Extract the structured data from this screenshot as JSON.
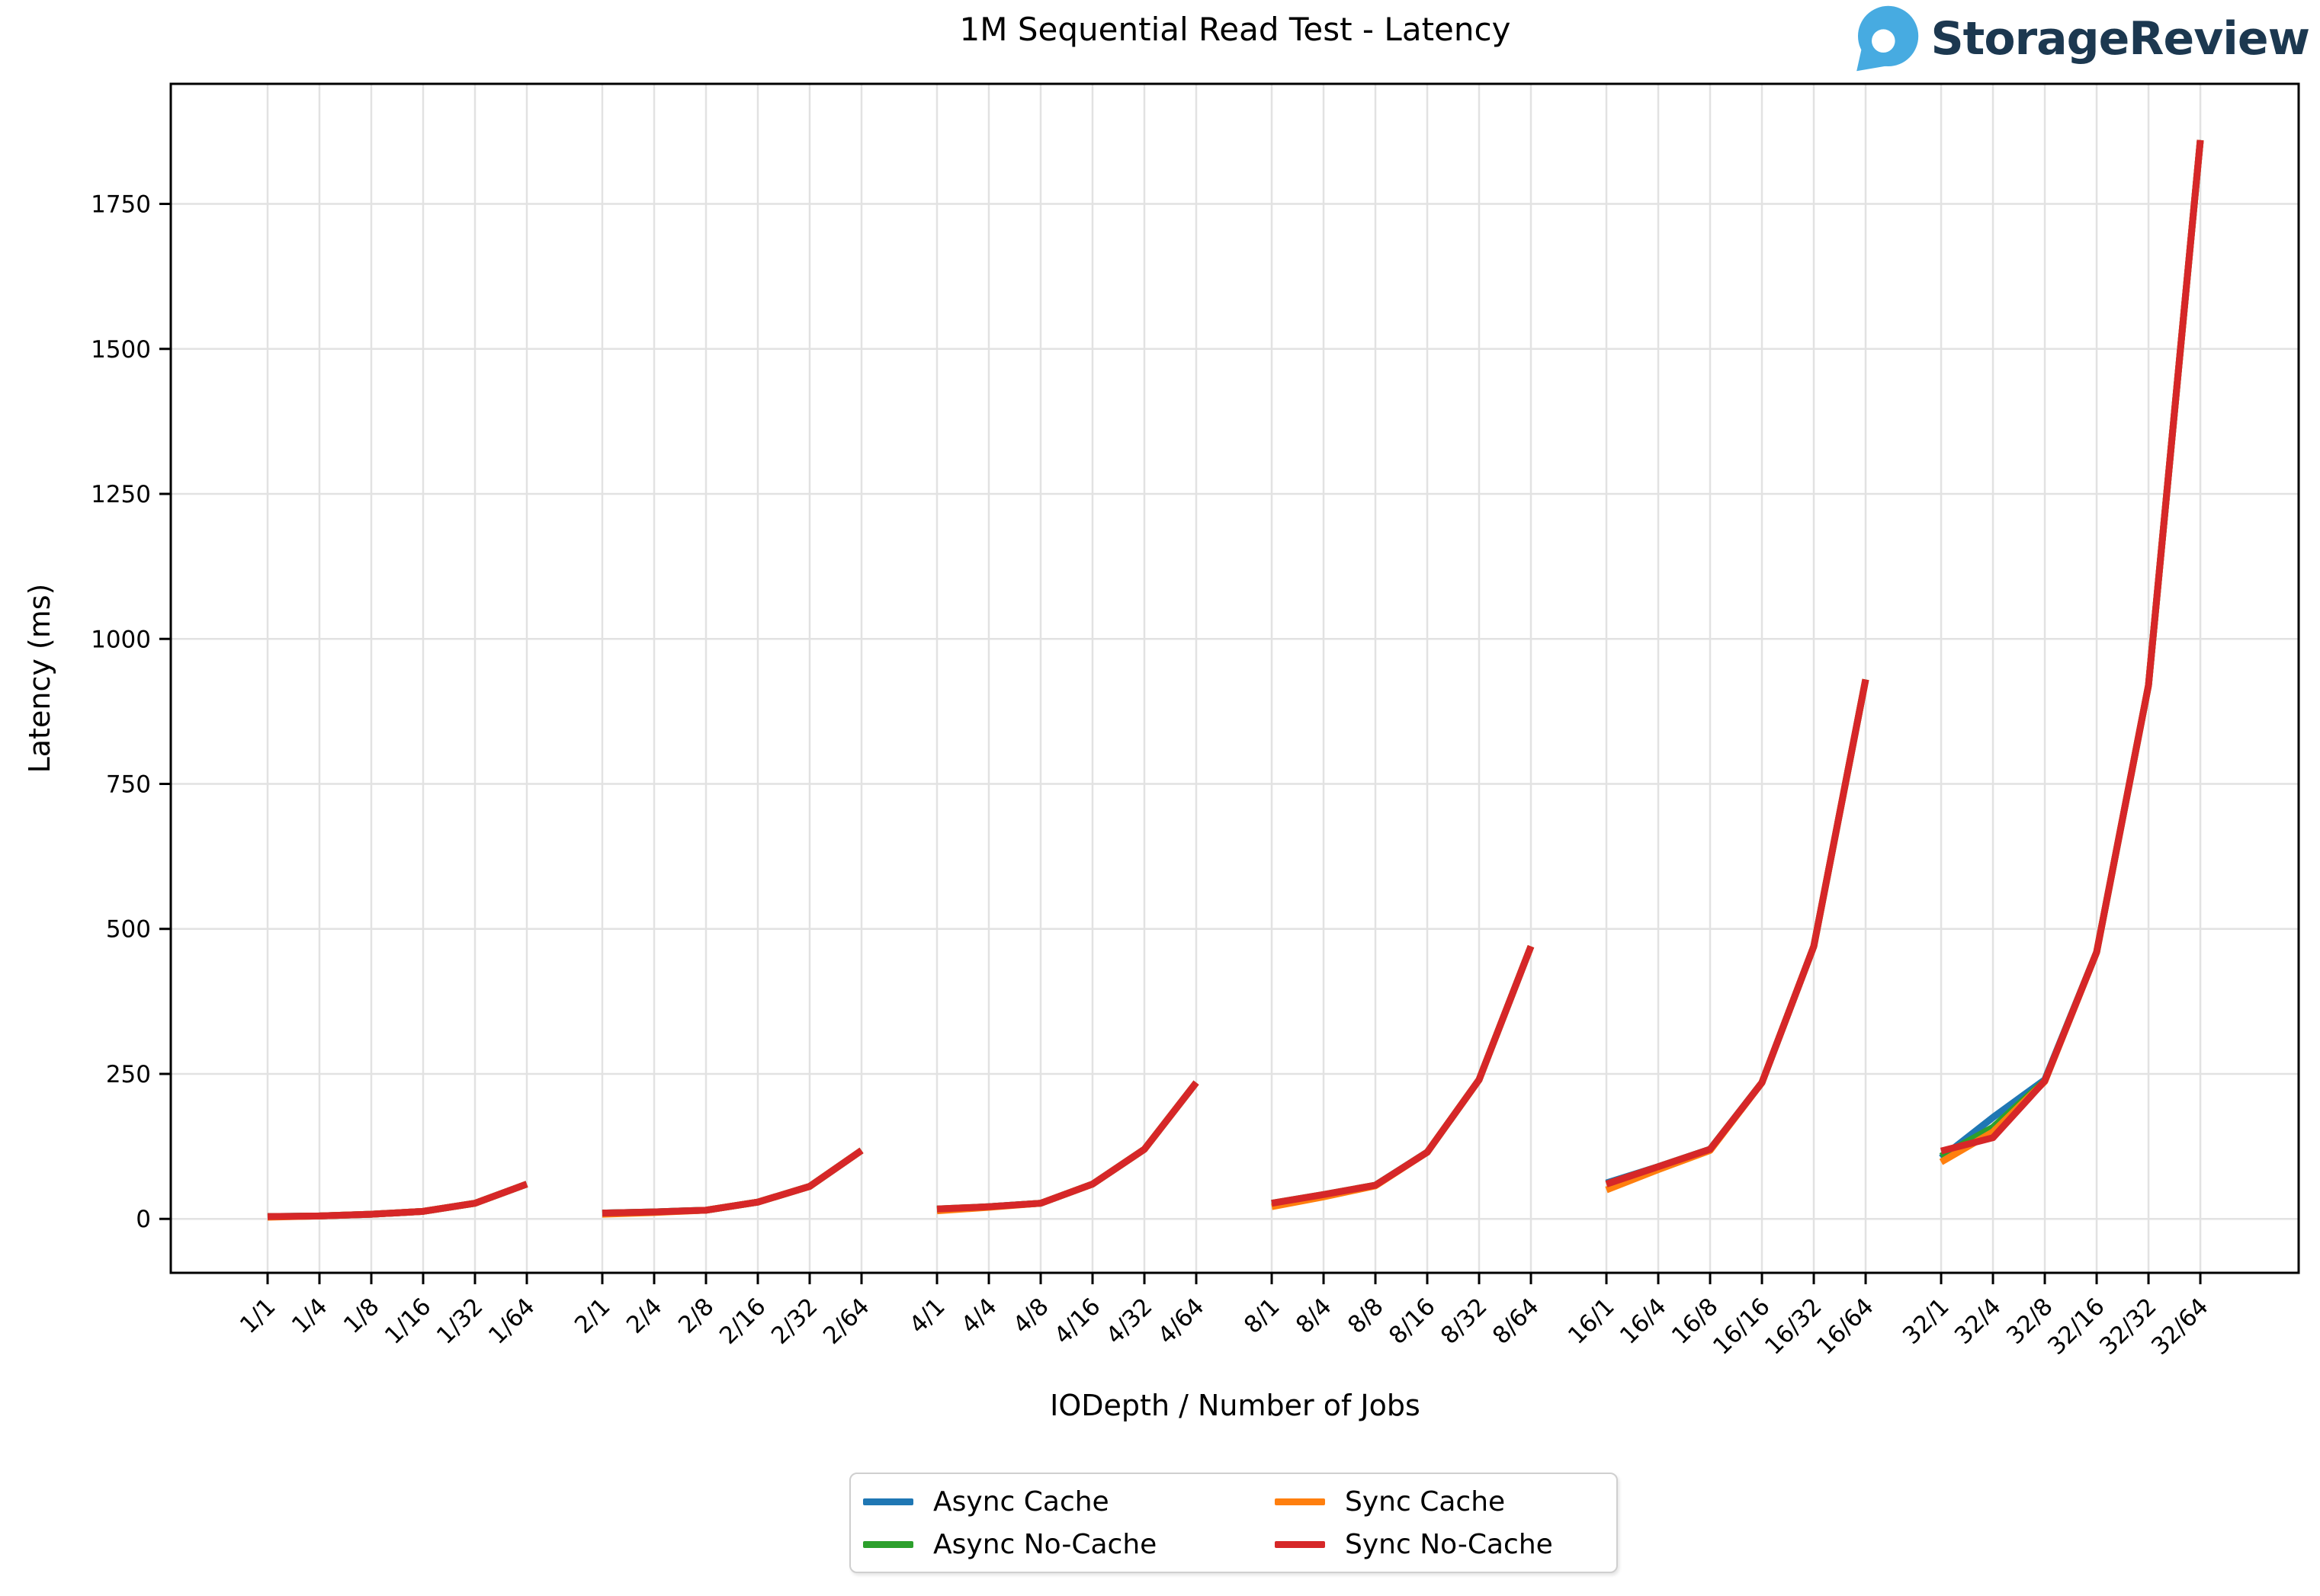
{
  "logo": {
    "text": "StorageReview",
    "icon_color": "#47abe1",
    "text_color": "#1c3850"
  },
  "chart_data": {
    "type": "line",
    "title": "1M Sequential Read Test - Latency",
    "xlabel": "IODepth / Number of Jobs",
    "ylabel": "Latency (ms)",
    "grid": true,
    "legend_position": "bottom-center",
    "group_size": 6,
    "group_gap_units": 1.456,
    "ylim": [
      -93,
      1957
    ],
    "yticks": [
      0,
      250,
      500,
      750,
      1000,
      1250,
      1500,
      1750
    ],
    "categories": [
      "1/1",
      "1/4",
      "1/8",
      "1/16",
      "1/32",
      "1/64",
      "2/1",
      "2/4",
      "2/8",
      "2/16",
      "2/32",
      "2/64",
      "4/1",
      "4/4",
      "4/8",
      "4/16",
      "4/32",
      "4/64",
      "8/1",
      "8/4",
      "8/8",
      "8/16",
      "8/32",
      "8/64",
      "16/1",
      "16/4",
      "16/8",
      "16/16",
      "16/32",
      "16/64",
      "32/1",
      "32/4",
      "32/8",
      "32/16",
      "32/32",
      "32/64"
    ],
    "series": [
      {
        "name": "Async Cache",
        "color": "#1f77b4",
        "values": [
          4,
          5,
          8,
          13,
          27,
          60,
          10,
          12,
          15,
          29,
          56,
          118,
          16,
          21,
          27,
          60,
          120,
          235,
          26,
          41,
          58,
          115,
          240,
          470,
          62,
          90,
          120,
          235,
          470,
          930,
          105,
          175,
          240,
          460,
          920,
          1860
        ]
      },
      {
        "name": "Async No-Cache",
        "color": "#2ca02c",
        "values": [
          4,
          5,
          8,
          13,
          27,
          60,
          10,
          12,
          15,
          29,
          56,
          118,
          17,
          21,
          27,
          60,
          120,
          235,
          27,
          42,
          58,
          115,
          240,
          470,
          60,
          90,
          120,
          235,
          470,
          930,
          108,
          158,
          238,
          460,
          920,
          1860
        ]
      },
      {
        "name": "Sync Cache",
        "color": "#ff7f0e",
        "values": [
          3,
          5,
          8,
          13,
          27,
          60,
          8,
          11,
          15,
          29,
          56,
          118,
          14,
          20,
          27,
          60,
          120,
          235,
          21,
          38,
          57,
          115,
          240,
          470,
          50,
          85,
          118,
          235,
          470,
          930,
          98,
          150,
          237,
          460,
          920,
          1860
        ]
      },
      {
        "name": "Sync No-Cache",
        "color": "#d62728",
        "values": [
          4,
          5,
          8,
          13,
          27,
          60,
          10,
          12,
          15,
          29,
          56,
          118,
          17,
          21,
          27,
          60,
          120,
          235,
          27,
          42,
          58,
          115,
          240,
          470,
          60,
          90,
          120,
          235,
          470,
          930,
          117,
          140,
          238,
          460,
          920,
          1860
        ]
      }
    ]
  }
}
